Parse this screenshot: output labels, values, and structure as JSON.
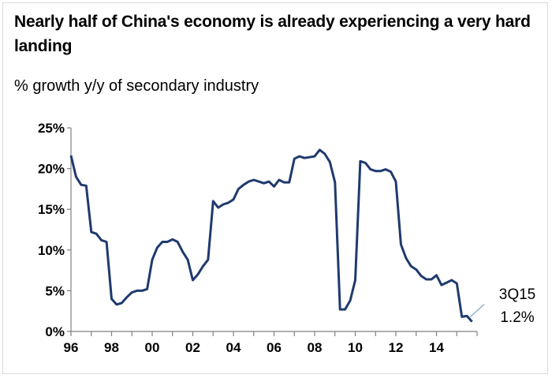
{
  "chart_data": {
    "type": "line",
    "title": "Nearly half of China's economy is already experiencing a very hard landing",
    "subtitle": "% growth y/y of secondary industry",
    "xlabel": "",
    "ylabel": "",
    "ylim": [
      0,
      25
    ],
    "xlim": [
      1996,
      2016
    ],
    "y_ticks": [
      0,
      5,
      10,
      15,
      20,
      25
    ],
    "y_tick_labels": [
      "0%",
      "5%",
      "10%",
      "15%",
      "20%",
      "25%"
    ],
    "x_ticks": [
      1996,
      1998,
      2000,
      2002,
      2004,
      2006,
      2008,
      2010,
      2012,
      2014
    ],
    "x_tick_labels": [
      "96",
      "98",
      "00",
      "02",
      "04",
      "06",
      "08",
      "10",
      "12",
      "14"
    ],
    "grid": false,
    "line_color": "#1f3a6e",
    "annotation": {
      "line1": "3Q15",
      "line2": "1.2%",
      "x": 2015.5,
      "y": 1.2
    },
    "series": [
      {
        "values": [
          [
            1996.0,
            21.6
          ],
          [
            1996.25,
            19.0
          ],
          [
            1996.5,
            18.0
          ],
          [
            1996.75,
            17.9
          ],
          [
            1997.0,
            12.2
          ],
          [
            1997.25,
            12.0
          ],
          [
            1997.5,
            11.2
          ],
          [
            1997.75,
            11.0
          ],
          [
            1998.0,
            4.0
          ],
          [
            1998.25,
            3.3
          ],
          [
            1998.5,
            3.5
          ],
          [
            1998.75,
            4.2
          ],
          [
            1999.0,
            4.8
          ],
          [
            1999.25,
            5.0
          ],
          [
            1999.5,
            5.0
          ],
          [
            1999.75,
            5.2
          ],
          [
            2000.0,
            8.8
          ],
          [
            2000.25,
            10.3
          ],
          [
            2000.5,
            11.0
          ],
          [
            2000.75,
            11.0
          ],
          [
            2001.0,
            11.3
          ],
          [
            2001.25,
            11.0
          ],
          [
            2001.5,
            9.8
          ],
          [
            2001.75,
            8.8
          ],
          [
            2002.0,
            6.3
          ],
          [
            2002.25,
            7.0
          ],
          [
            2002.5,
            8.0
          ],
          [
            2002.75,
            8.8
          ],
          [
            2003.0,
            16.0
          ],
          [
            2003.25,
            15.2
          ],
          [
            2003.5,
            15.6
          ],
          [
            2003.75,
            15.8
          ],
          [
            2004.0,
            16.2
          ],
          [
            2004.25,
            17.5
          ],
          [
            2004.5,
            18.0
          ],
          [
            2004.75,
            18.4
          ],
          [
            2005.0,
            18.6
          ],
          [
            2005.25,
            18.4
          ],
          [
            2005.5,
            18.2
          ],
          [
            2005.75,
            18.4
          ],
          [
            2006.0,
            17.8
          ],
          [
            2006.25,
            18.6
          ],
          [
            2006.5,
            18.3
          ],
          [
            2006.75,
            18.3
          ],
          [
            2007.0,
            21.2
          ],
          [
            2007.25,
            21.5
          ],
          [
            2007.5,
            21.3
          ],
          [
            2007.75,
            21.4
          ],
          [
            2008.0,
            21.5
          ],
          [
            2008.25,
            22.3
          ],
          [
            2008.5,
            21.8
          ],
          [
            2008.75,
            20.8
          ],
          [
            2009.0,
            18.3
          ],
          [
            2009.25,
            2.7
          ],
          [
            2009.5,
            2.7
          ],
          [
            2009.75,
            3.8
          ],
          [
            2010.0,
            6.3
          ],
          [
            2010.25,
            20.9
          ],
          [
            2010.5,
            20.7
          ],
          [
            2010.75,
            19.9
          ],
          [
            2011.0,
            19.7
          ],
          [
            2011.25,
            19.7
          ],
          [
            2011.5,
            19.9
          ],
          [
            2011.75,
            19.6
          ],
          [
            2012.0,
            18.4
          ],
          [
            2012.25,
            10.7
          ],
          [
            2012.5,
            9.0
          ],
          [
            2012.75,
            8.0
          ],
          [
            2013.0,
            7.6
          ],
          [
            2013.25,
            6.8
          ],
          [
            2013.5,
            6.4
          ],
          [
            2013.75,
            6.4
          ],
          [
            2014.0,
            6.9
          ],
          [
            2014.25,
            5.7
          ],
          [
            2014.5,
            6.0
          ],
          [
            2014.75,
            6.3
          ],
          [
            2015.0,
            5.9
          ],
          [
            2015.25,
            1.8
          ],
          [
            2015.5,
            1.9
          ],
          [
            2015.75,
            1.2
          ]
        ]
      }
    ]
  }
}
